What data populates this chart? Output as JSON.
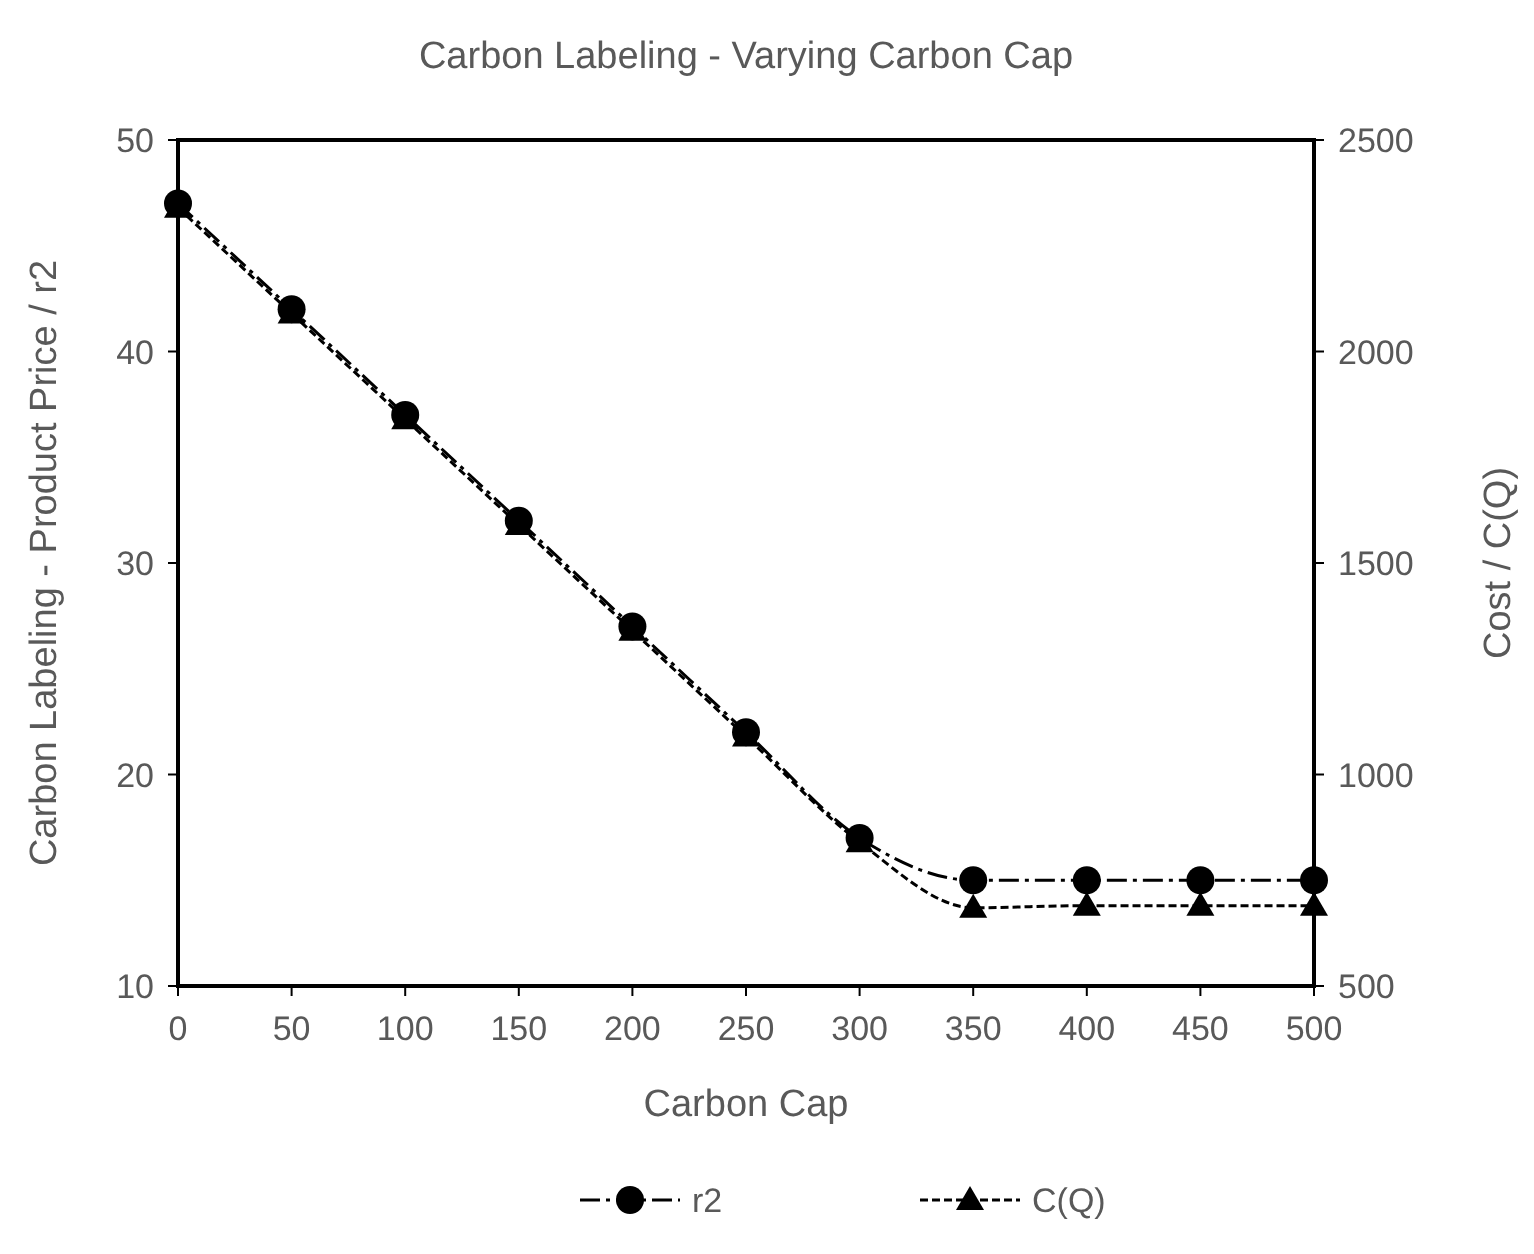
{
  "chart_data": {
    "type": "line",
    "title": "Carbon Labeling - Varying Carbon Cap",
    "xlabel": "Carbon Cap",
    "ylabel": "Carbon Labeling - Product Price / r2",
    "y2label": "Cost / C(Q)",
    "x": [
      0,
      50,
      100,
      150,
      200,
      250,
      300,
      350,
      400,
      450,
      500
    ],
    "xlim": [
      0,
      500
    ],
    "xticks": [
      0,
      50,
      100,
      150,
      200,
      250,
      300,
      350,
      400,
      450,
      500
    ],
    "ylim": [
      10,
      50
    ],
    "yticks": [
      10,
      20,
      30,
      40,
      50
    ],
    "y2lim": [
      500,
      2500
    ],
    "y2ticks": [
      500,
      1000,
      1500,
      2000,
      2500
    ],
    "grid": false,
    "legend": "bottom",
    "series": [
      {
        "name": "r2",
        "color": "#000000",
        "marker": "circle",
        "line_style": "dashdot",
        "values": [
          47,
          42,
          37,
          32,
          27,
          22,
          17,
          15,
          15,
          15,
          15
        ]
      },
      {
        "name": "C(Q)",
        "color": "#000000",
        "marker": "triangle",
        "line_style": "dashed",
        "axis": "y2",
        "values": [
          2340,
          2090,
          1840,
          1590,
          1340,
          1090,
          840,
          685,
          690,
          690,
          690
        ]
      }
    ]
  }
}
